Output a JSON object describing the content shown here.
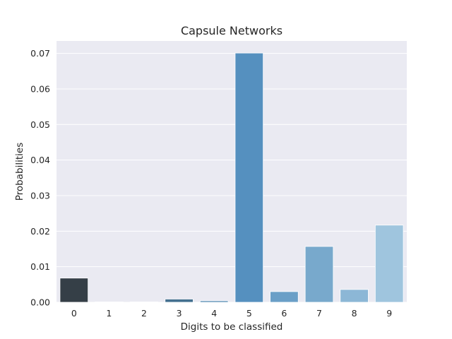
{
  "chart_data": {
    "type": "bar",
    "title": "Capsule Networks",
    "xlabel": "Digits to be classified",
    "ylabel": "Probabilities",
    "categories": [
      "0",
      "1",
      "2",
      "3",
      "4",
      "5",
      "6",
      "7",
      "8",
      "9"
    ],
    "values": [
      0.0068,
      0.0001,
      0.0001,
      0.0009,
      0.0004,
      0.0701,
      0.003,
      0.0157,
      0.0036,
      0.0217
    ],
    "bar_colors": [
      "#353f47",
      "#3b4e5e",
      "#3f5f77",
      "#44708f",
      "#4881ad",
      "#5590bf",
      "#6a9fc7",
      "#78a9cc",
      "#8cb7d6",
      "#9fc5de"
    ],
    "ylim": [
      0,
      0.0735
    ],
    "yticks": [
      0.0,
      0.01,
      0.02,
      0.03,
      0.04,
      0.05,
      0.06,
      0.07
    ],
    "ytick_labels": [
      "0.00",
      "0.01",
      "0.02",
      "0.03",
      "0.04",
      "0.05",
      "0.06",
      "0.07"
    ],
    "grid": true,
    "legend": "none",
    "background_color": "#eaeaf2",
    "grid_color": "#ffffff"
  }
}
